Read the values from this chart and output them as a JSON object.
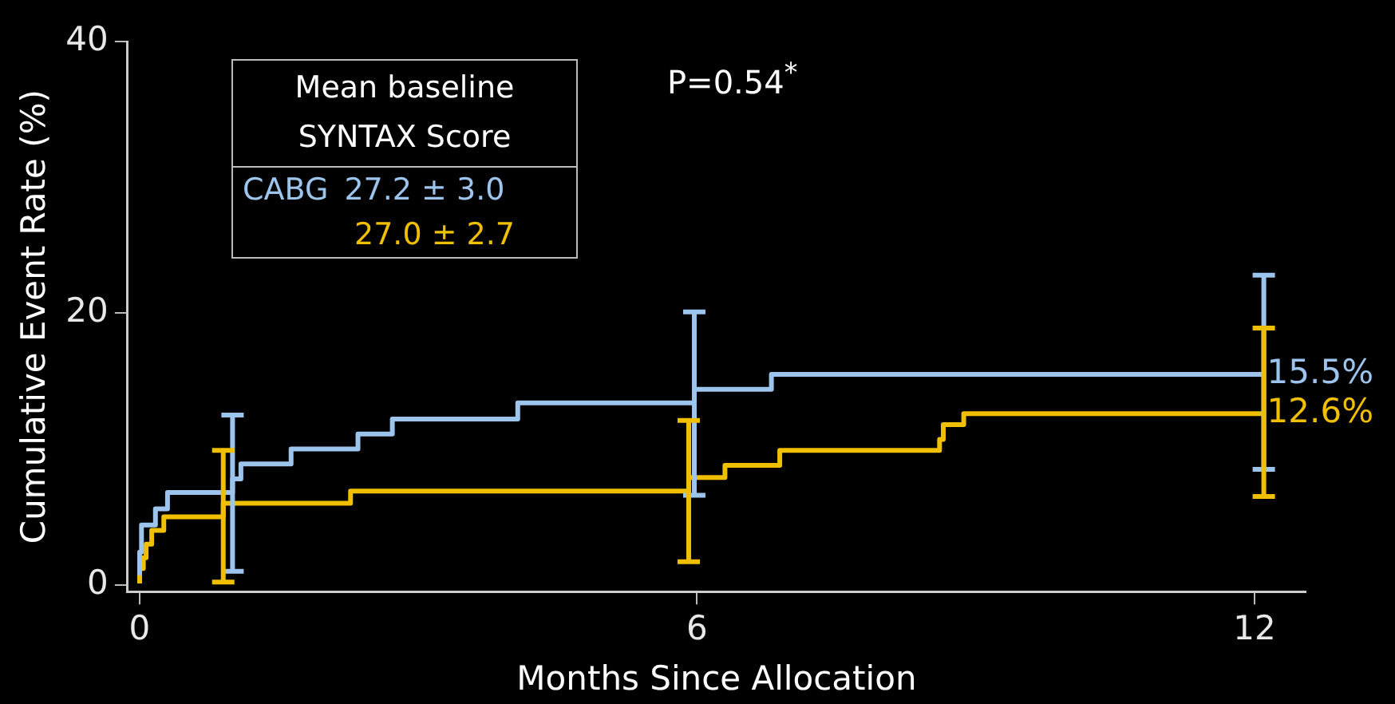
{
  "chart_data": {
    "type": "step",
    "xlabel": "Months Since Allocation",
    "ylabel": "Cumulative Event Rate (%)",
    "xlim": [
      -0.13,
      12.55
    ],
    "xticks": [
      0,
      6,
      12
    ],
    "ylim": [
      -0.5,
      40
    ],
    "yticks": [
      0,
      20,
      40
    ],
    "grid": false,
    "legend": false,
    "marker": "none",
    "line_style": "solid",
    "annotations": [
      "Mean baseline SYNTAX Score",
      "CABG",
      "27.2 ± 3.0",
      "27.0 ± 2.7",
      "P=0.54$^{*}$"
    ],
    "series": [
      {
        "color": "#9cc4ec",
        "x": [
          0,
          0.02,
          0.17,
          0.3,
          0.63,
          1.0,
          1.09,
          1.63,
          2.35,
          2.72,
          4.07,
          5.6,
          5.97,
          6.8,
          8.74,
          12.1
        ],
        "values": [
          0.7,
          2.4,
          4.4,
          5.6,
          6.8,
          6.8,
          7.8,
          8.9,
          10.0,
          11.1,
          12.2,
          13.4,
          13.4,
          14.4,
          15.5,
          15.5
        ],
        "errors": [
          null,
          null,
          null,
          null,
          null,
          [
            1.0,
            12.5
          ],
          null,
          null,
          null,
          null,
          null,
          null,
          [
            6.6,
            20.1
          ],
          null,
          null,
          [
            8.5,
            22.8
          ]
        ],
        "value_labels": [
          null,
          null,
          null,
          null,
          null,
          null,
          null,
          null,
          null,
          null,
          null,
          null,
          null,
          null,
          null,
          "15.5%"
        ]
      },
      {
        "color": "#f0c000",
        "x": [
          0,
          0.04,
          0.07,
          0.13,
          0.26,
          0.78,
          0.9,
          2.27,
          3.73,
          5.91,
          6.3,
          6.89,
          8.61,
          8.65,
          8.87,
          9.48,
          12.1
        ],
        "values": [
          0.1,
          1.2,
          2.0,
          3.0,
          4.0,
          5.0,
          5.0,
          6.0,
          6.9,
          6.9,
          7.9,
          8.8,
          9.9,
          10.7,
          11.8,
          12.6,
          12.6
        ],
        "errors": [
          null,
          null,
          null,
          null,
          null,
          null,
          [
            0.2,
            9.9
          ],
          null,
          null,
          [
            1.7,
            12.1
          ],
          null,
          null,
          null,
          null,
          null,
          null,
          [
            6.5,
            18.9
          ]
        ],
        "value_labels": [
          null,
          null,
          null,
          null,
          null,
          null,
          null,
          null,
          null,
          null,
          null,
          null,
          null,
          null,
          null,
          null,
          "12.6%"
        ]
      }
    ]
  }
}
